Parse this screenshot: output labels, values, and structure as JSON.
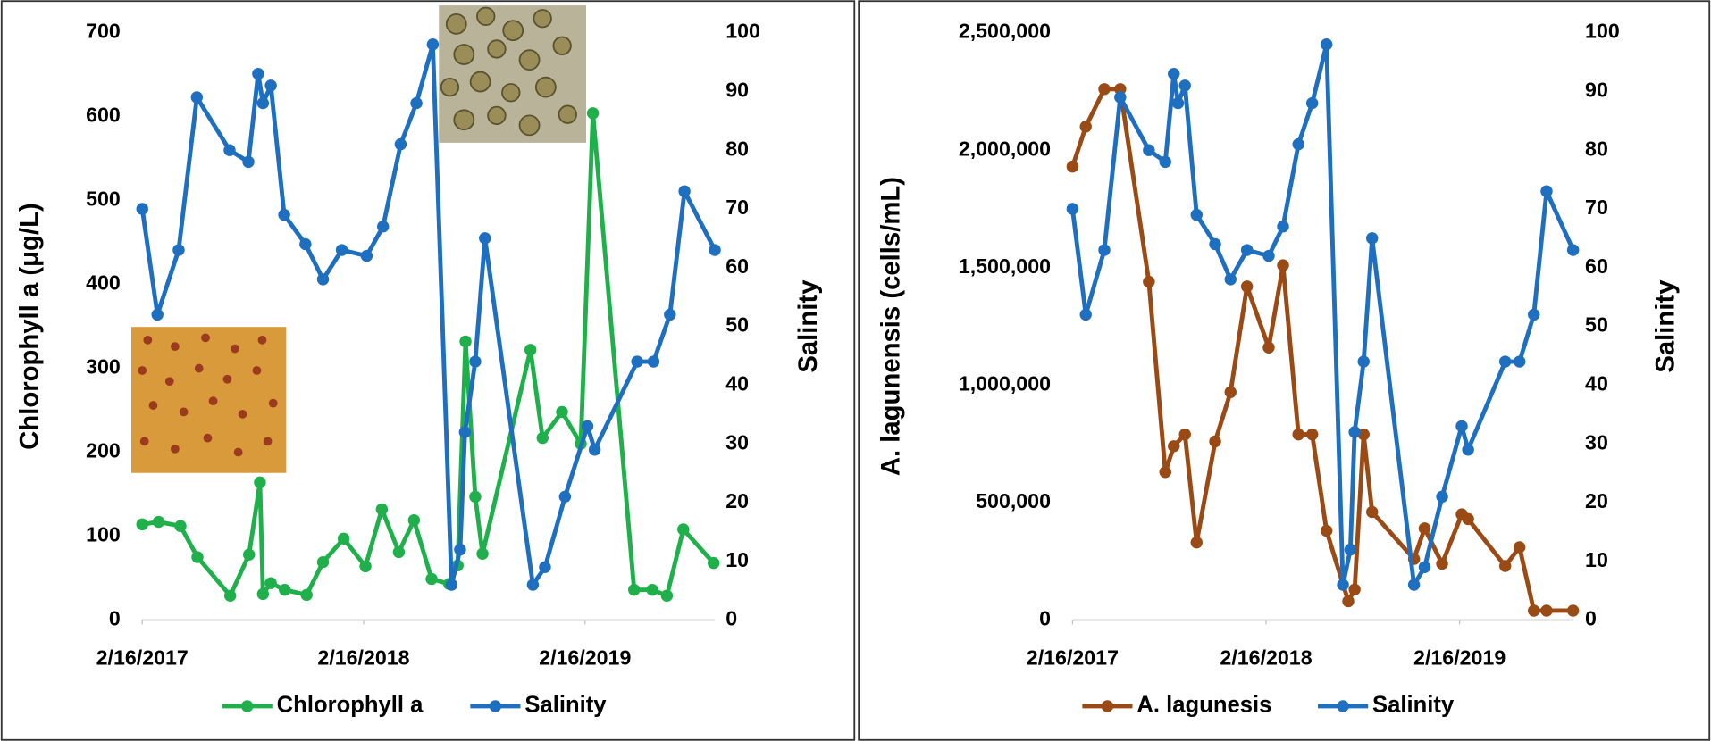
{
  "chart_data": [
    {
      "type": "line",
      "ylabel": "Chlorophyll a (μg/L)",
      "y2label": "Salinity",
      "xlim": [
        "2017-02-16",
        "2019-09-18"
      ],
      "xticks": [
        {
          "value": "2017-02-16",
          "label": "2/16/2017"
        },
        {
          "value": "2018-02-16",
          "label": "2/16/2018"
        },
        {
          "value": "2019-02-16",
          "label": "2/16/2019"
        }
      ],
      "ylim": [
        0,
        700
      ],
      "yticks": [
        0,
        100,
        200,
        300,
        400,
        500,
        600,
        700
      ],
      "y2lim": [
        0,
        100
      ],
      "y2ticks": [
        0,
        10,
        20,
        30,
        40,
        50,
        60,
        70,
        80,
        90,
        100
      ],
      "series": [
        {
          "name": "Chlorophyll a",
          "color": "#1fb04b",
          "x": [
            "2017-02-16",
            "2017-03-15",
            "2017-04-20",
            "2017-05-18",
            "2017-07-11",
            "2017-08-11",
            "2017-08-29",
            "2017-09-03",
            "2017-09-16",
            "2017-10-09",
            "2017-11-14",
            "2017-12-11",
            "2018-01-14",
            "2018-02-19",
            "2018-03-18",
            "2018-04-15",
            "2018-05-10",
            "2018-06-08",
            "2018-07-07",
            "2018-07-21",
            "2018-08-03",
            "2018-08-19",
            "2018-08-31",
            "2018-11-18",
            "2018-12-08",
            "2019-01-09",
            "2019-02-09",
            "2019-03-01",
            "2019-05-08",
            "2019-06-07",
            "2019-07-01",
            "2019-07-28",
            "2019-09-16"
          ],
          "values": [
            114,
            117,
            112,
            75,
            29,
            78,
            164,
            31,
            44,
            36,
            30,
            69,
            97,
            64,
            132,
            81,
            119,
            49,
            43,
            65,
            332,
            147,
            79,
            322,
            217,
            248,
            210,
            604,
            36,
            36,
            29,
            108,
            68
          ]
        },
        {
          "name": "Salinity",
          "color": "#1f6fc0",
          "axis": "y2",
          "x": [
            "2017-02-16",
            "2017-03-13",
            "2017-04-17",
            "2017-05-17",
            "2017-07-10",
            "2017-08-10",
            "2017-08-26",
            "2017-09-03",
            "2017-09-16",
            "2017-10-08",
            "2017-11-12",
            "2017-12-11",
            "2018-01-11",
            "2018-02-21",
            "2018-03-20",
            "2018-04-18",
            "2018-05-14",
            "2018-06-10",
            "2018-07-11",
            "2018-07-25",
            "2018-08-02",
            "2018-08-19",
            "2018-09-04",
            "2018-11-22",
            "2018-12-12",
            "2019-01-14",
            "2019-02-20",
            "2019-03-04",
            "2019-05-13",
            "2019-06-09",
            "2019-07-06",
            "2019-07-30",
            "2019-09-18"
          ],
          "values": [
            70,
            52,
            63,
            89,
            80,
            78,
            93,
            88,
            91,
            69,
            64,
            58,
            63,
            62,
            67,
            81,
            88,
            98,
            6,
            12,
            32,
            44,
            65,
            6,
            9,
            21,
            33,
            29,
            44,
            44,
            52,
            73,
            63
          ]
        }
      ]
    },
    {
      "type": "line",
      "ylabel": "A. lagunensis (cells/mL)",
      "y2label": "Salinity",
      "xlim": [
        "2017-02-16",
        "2019-09-18"
      ],
      "xticks": [
        {
          "value": "2017-02-16",
          "label": "2/16/2017"
        },
        {
          "value": "2018-02-16",
          "label": "2/16/2018"
        },
        {
          "value": "2019-02-16",
          "label": "2/16/2019"
        }
      ],
      "ylim": [
        0,
        2500000
      ],
      "yticks": [
        0,
        {
          "value": 500000,
          "label": "500,000"
        },
        {
          "value": 1000000,
          "label": "1,000,000"
        },
        {
          "value": 1500000,
          "label": "1,500,000"
        },
        {
          "value": 2000000,
          "label": "2,000,000"
        },
        {
          "value": 2500000,
          "label": "2,500,000"
        }
      ],
      "y2lim": [
        0,
        100
      ],
      "y2ticks": [
        0,
        10,
        20,
        30,
        40,
        50,
        60,
        70,
        80,
        90,
        100
      ],
      "series": [
        {
          "name": "A. lagunesis",
          "color": "#9a4a15",
          "x": [
            "2017-02-16",
            "2017-03-13",
            "2017-04-17",
            "2017-05-17",
            "2017-07-10",
            "2017-08-10",
            "2017-08-26",
            "2017-09-16",
            "2017-10-08",
            "2017-11-12",
            "2017-12-11",
            "2018-01-11",
            "2018-02-21",
            "2018-03-20",
            "2018-04-18",
            "2018-05-14",
            "2018-06-10",
            "2018-07-21",
            "2018-08-02",
            "2018-08-19",
            "2018-09-04",
            "2018-11-22",
            "2018-12-12",
            "2019-01-14",
            "2019-02-20",
            "2019-03-04",
            "2019-05-13",
            "2019-06-09",
            "2019-07-06",
            "2019-07-30",
            "2019-09-18"
          ],
          "values": [
            1930000,
            2100000,
            2260000,
            2260000,
            1440000,
            630000,
            740000,
            790000,
            330000,
            760000,
            970000,
            1420000,
            1160000,
            1510000,
            790000,
            790000,
            380000,
            80000,
            130000,
            790000,
            460000,
            260000,
            390000,
            240000,
            450000,
            430000,
            230000,
            310000,
            40000,
            40000,
            40000
          ]
        },
        {
          "name": "Salinity",
          "color": "#1f6fc0",
          "axis": "y2",
          "x": [
            "2017-02-16",
            "2017-03-13",
            "2017-04-17",
            "2017-05-17",
            "2017-07-10",
            "2017-08-10",
            "2017-08-26",
            "2017-09-03",
            "2017-09-16",
            "2017-10-08",
            "2017-11-12",
            "2017-12-11",
            "2018-01-11",
            "2018-02-21",
            "2018-03-20",
            "2018-04-18",
            "2018-05-14",
            "2018-06-10",
            "2018-07-11",
            "2018-07-25",
            "2018-08-02",
            "2018-08-19",
            "2018-09-04",
            "2018-11-22",
            "2018-12-12",
            "2019-01-14",
            "2019-02-20",
            "2019-03-04",
            "2019-05-13",
            "2019-06-09",
            "2019-07-06",
            "2019-07-30",
            "2019-09-18"
          ],
          "values": [
            70,
            52,
            63,
            89,
            80,
            78,
            93,
            88,
            91,
            69,
            64,
            58,
            63,
            62,
            67,
            81,
            88,
            98,
            6,
            12,
            32,
            44,
            65,
            6,
            9,
            21,
            33,
            29,
            44,
            44,
            52,
            73,
            63
          ]
        }
      ]
    }
  ]
}
